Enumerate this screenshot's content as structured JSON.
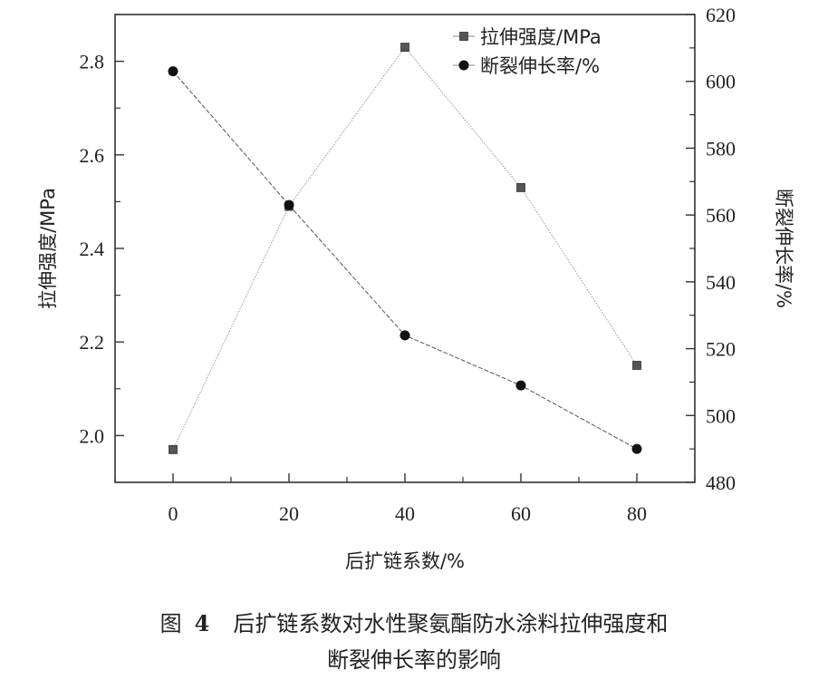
{
  "chart_data": {
    "type": "line",
    "x": [
      0,
      20,
      40,
      60,
      80
    ],
    "xlabel": "后扩链系数/%",
    "xlim": [
      -10,
      90
    ],
    "xticks": [
      0,
      20,
      40,
      60,
      80
    ],
    "ylabel": "拉伸强度/MPa",
    "ylim": [
      1.9,
      2.9
    ],
    "yticks": [
      2.0,
      2.2,
      2.4,
      2.6,
      2.8
    ],
    "y2label": "断裂伸长率/%",
    "y2lim": [
      480,
      620
    ],
    "y2ticks": [
      480,
      500,
      520,
      540,
      560,
      580,
      600,
      620
    ],
    "grid": false,
    "legend_position": "top-right",
    "series": [
      {
        "name": "拉伸强度/MPa",
        "axis": "left",
        "marker": "square",
        "values": [
          1.97,
          2.49,
          2.83,
          2.53,
          2.15
        ]
      },
      {
        "name": "断裂伸长率/%",
        "axis": "right",
        "marker": "circle",
        "values": [
          603,
          563,
          524,
          509,
          490
        ]
      }
    ]
  },
  "caption": {
    "label": "图",
    "number": "4",
    "line1": "后扩链系数对水性聚氨酯防水涂料拉伸强度和",
    "line2": "断裂伸长率的影响"
  }
}
